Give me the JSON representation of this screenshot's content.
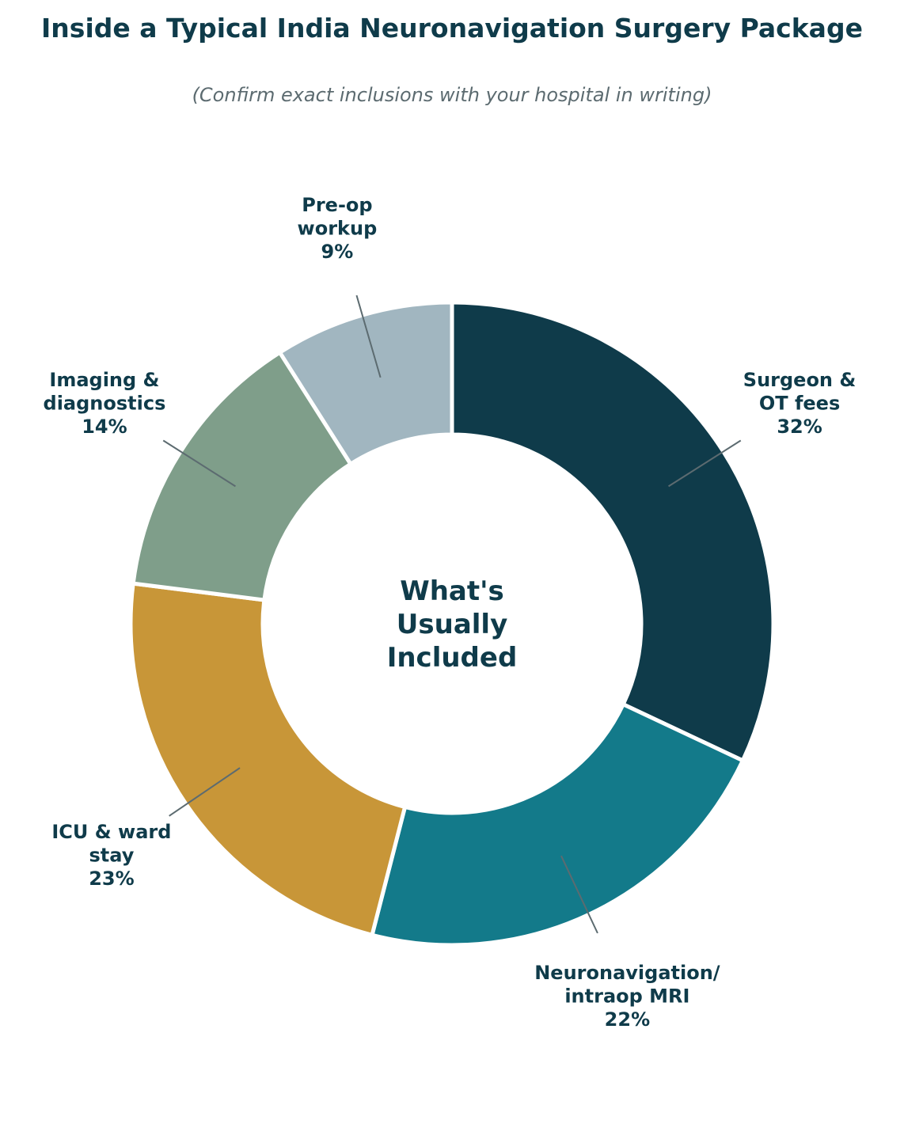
{
  "chart_data": {
    "type": "pie",
    "donut": true,
    "title": "Inside a Typical India Neuronavigation Surgery Package",
    "subtitle": "(Confirm exact inclusions with your hospital in writing)",
    "center_label": [
      "What's",
      "Usually",
      "Included"
    ],
    "unit": "%",
    "legend": "none",
    "start": "top",
    "direction": "clockwise",
    "slices": [
      {
        "label_lines": [
          "Surgeon &",
          "OT fees"
        ],
        "value": 32,
        "value_label": "32%",
        "color": "#0f3b4a"
      },
      {
        "label_lines": [
          "Neuronavigation/",
          "intraop MRI"
        ],
        "value": 22,
        "value_label": "22%",
        "color": "#137a8a"
      },
      {
        "label_lines": [
          "ICU & ward",
          "stay"
        ],
        "value": 23,
        "value_label": "23%",
        "color": "#c89638"
      },
      {
        "label_lines": [
          "Imaging &",
          "diagnostics"
        ],
        "value": 14,
        "value_label": "14%",
        "color": "#7f9e8a"
      },
      {
        "label_lines": [
          "Pre-op",
          "workup"
        ],
        "value": 9,
        "value_label": "9%",
        "color": "#a1b6c0"
      }
    ]
  }
}
